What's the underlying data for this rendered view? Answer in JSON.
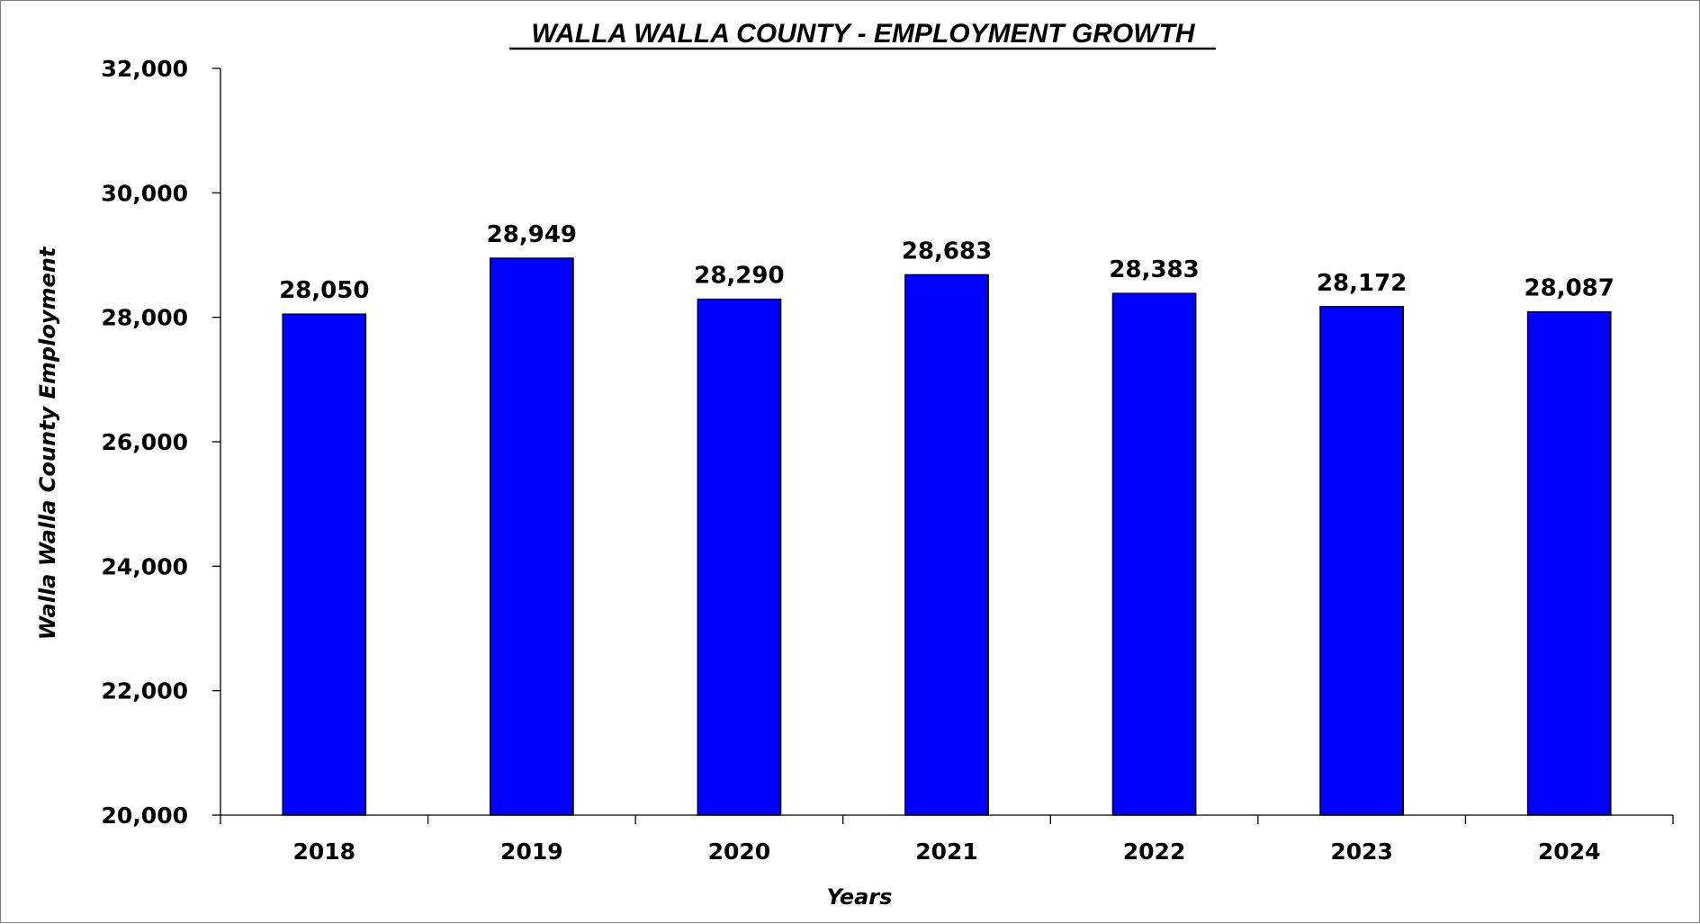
{
  "chart_data": {
    "type": "bar",
    "title": "WALLA WALLA COUNTY - EMPLOYMENT GROWTH",
    "xlabel": "Years",
    "ylabel": "Walla Walla County Employment",
    "categories": [
      "2018",
      "2019",
      "2020",
      "2021",
      "2022",
      "2023",
      "2024"
    ],
    "values": [
      28050,
      28949,
      28290,
      28683,
      28383,
      28172,
      28087
    ],
    "data_labels": [
      "28,050",
      "28,949",
      "28,290",
      "28,683",
      "28,383",
      "28,172",
      "28,087"
    ],
    "ylim": [
      20000,
      32000
    ],
    "yticks": [
      20000,
      22000,
      24000,
      26000,
      28000,
      30000,
      32000
    ],
    "ytick_labels": [
      "20,000",
      "22,000",
      "24,000",
      "26,000",
      "28,000",
      "30,000",
      "32,000"
    ],
    "grid": false,
    "legend": "none",
    "bar_color": "#0000FF",
    "bar_edge_color": "#000000"
  }
}
